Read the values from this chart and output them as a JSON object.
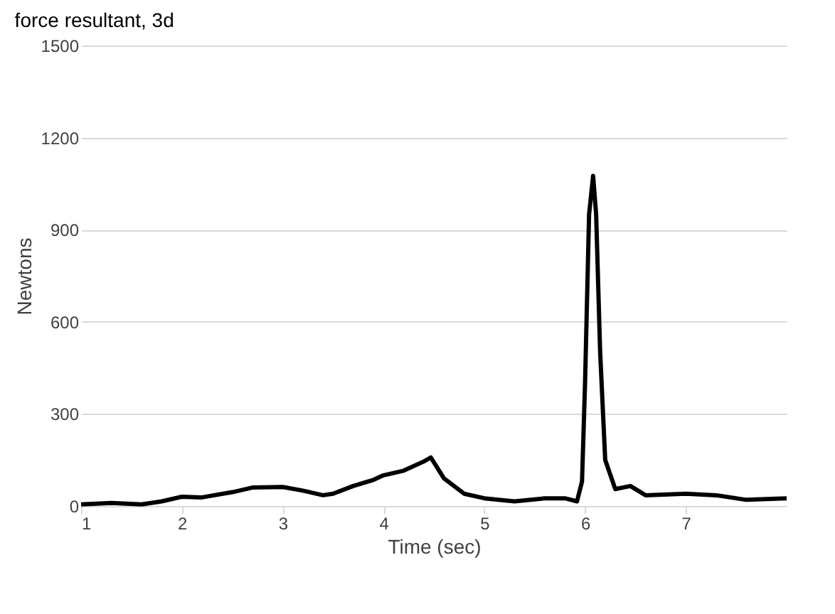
{
  "chart_data": {
    "type": "line",
    "title": "force resultant, 3d",
    "xlabel": "Time (sec)",
    "ylabel": "Newtons",
    "x": [
      1.0,
      1.3,
      1.6,
      1.8,
      2.0,
      2.2,
      2.5,
      2.7,
      3.0,
      3.2,
      3.4,
      3.5,
      3.7,
      3.9,
      4.0,
      4.2,
      4.4,
      4.47,
      4.6,
      4.8,
      5.0,
      5.3,
      5.6,
      5.8,
      5.92,
      5.97,
      6.0,
      6.04,
      6.08,
      6.11,
      6.15,
      6.2,
      6.3,
      6.45,
      6.6,
      7.0,
      7.3,
      7.6,
      8.0
    ],
    "series": [
      {
        "color": "#000000",
        "values": [
          5,
          10,
          5,
          15,
          30,
          28,
          45,
          60,
          62,
          50,
          35,
          40,
          65,
          85,
          100,
          115,
          145,
          158,
          90,
          40,
          25,
          15,
          25,
          25,
          15,
          80,
          400,
          950,
          1075,
          950,
          500,
          150,
          55,
          65,
          35,
          40,
          35,
          20,
          25
        ]
      }
    ],
    "xlim": [
      1,
      8
    ],
    "xticks": [
      1,
      2,
      3,
      4,
      5,
      6,
      7
    ],
    "ylim": [
      0,
      1500
    ],
    "yticks": [
      0,
      300,
      600,
      900,
      1200,
      1500
    ],
    "grid": "y",
    "marker": "none",
    "line_style": "solid"
  }
}
